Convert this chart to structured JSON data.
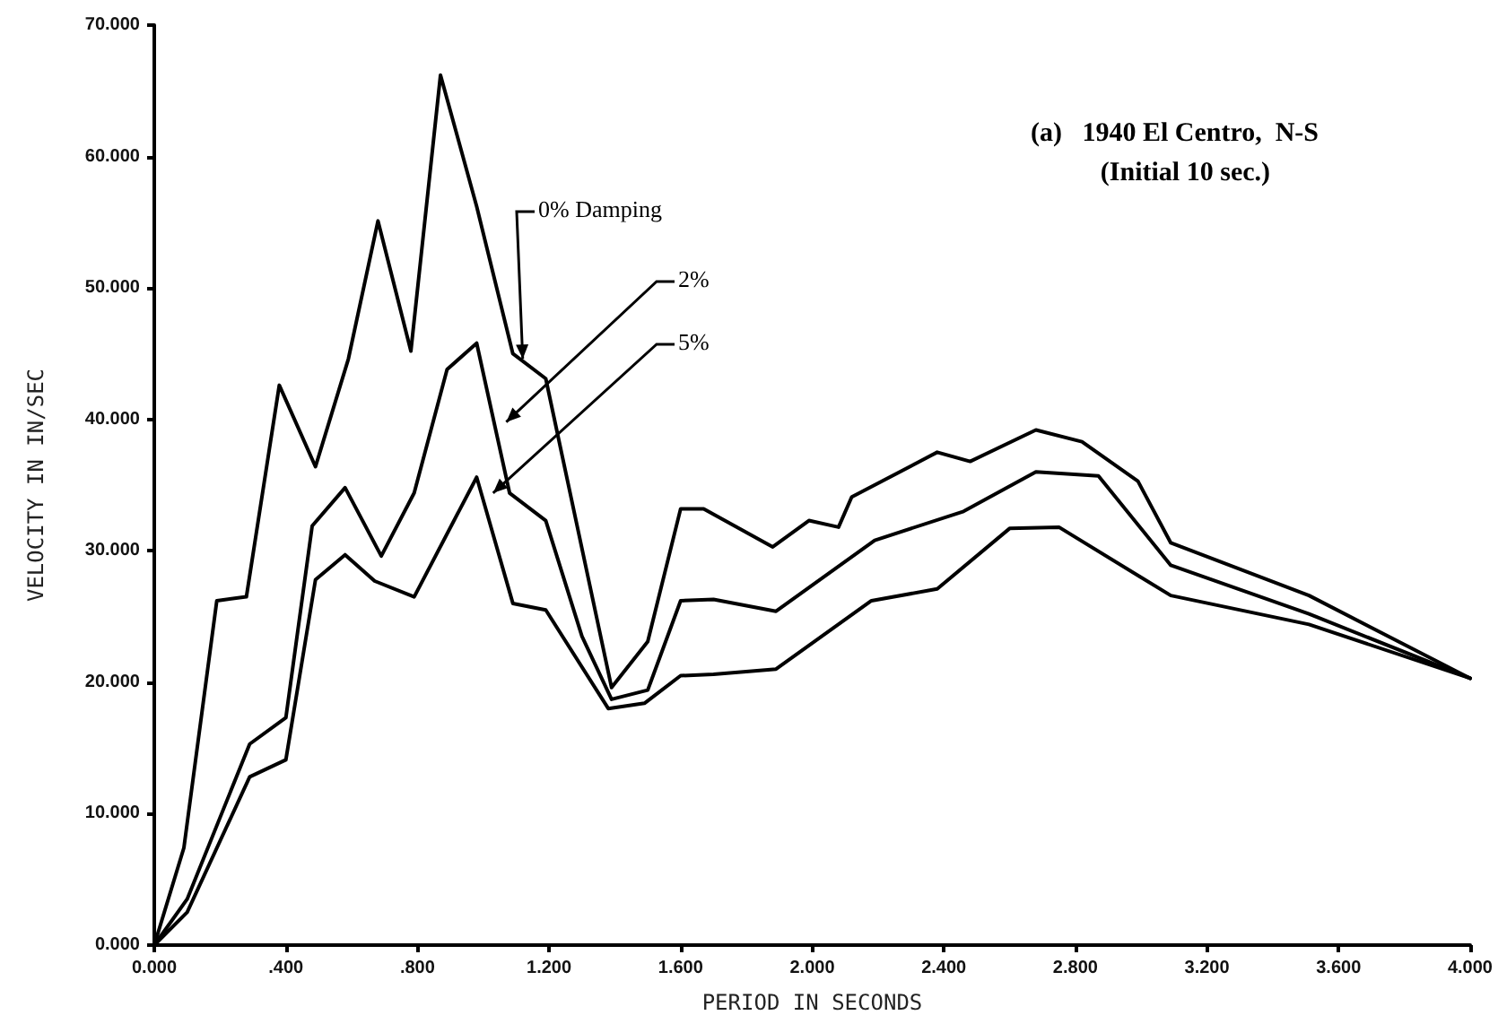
{
  "chart_data": {
    "type": "line",
    "title": "(a)   1940 El Centro,  N-S",
    "subtitle": "(Initial 10 sec.)",
    "xlabel": "PERIOD IN SECONDS",
    "ylabel": "VELOCITY IN IN/SEC",
    "xlim": [
      0,
      4
    ],
    "ylim": [
      0,
      70
    ],
    "xticks": [
      {
        "value": 0,
        "label": "0.000"
      },
      {
        "value": 0.4,
        "label": ".400"
      },
      {
        "value": 0.8,
        "label": ".800"
      },
      {
        "value": 1.2,
        "label": "1.200"
      },
      {
        "value": 1.6,
        "label": "1.600"
      },
      {
        "value": 2.0,
        "label": "2.000"
      },
      {
        "value": 2.4,
        "label": "2.400"
      },
      {
        "value": 2.8,
        "label": "2.800"
      },
      {
        "value": 3.2,
        "label": "3.200"
      },
      {
        "value": 3.6,
        "label": "3.600"
      },
      {
        "value": 4.0,
        "label": "4.000"
      }
    ],
    "yticks": [
      {
        "value": 0,
        "label": "0.000"
      },
      {
        "value": 10,
        "label": "10.000"
      },
      {
        "value": 20,
        "label": "20.000"
      },
      {
        "value": 30,
        "label": "30.000"
      },
      {
        "value": 40,
        "label": "40.000"
      },
      {
        "value": 50,
        "label": "50.000"
      },
      {
        "value": 60,
        "label": "60.000"
      },
      {
        "value": 70,
        "label": "70.000"
      }
    ],
    "grid": false,
    "legend": false,
    "marker": "none",
    "line_style": "solid",
    "series": [
      {
        "name": "0% Damping",
        "color": "#000000",
        "x": [
          0,
          0.09,
          0.19,
          0.28,
          0.38,
          0.49,
          0.59,
          0.68,
          0.78,
          0.87,
          0.98,
          1.09,
          1.19,
          1.39,
          1.5,
          1.6,
          1.67,
          1.88,
          1.99,
          2.08,
          2.12,
          2.38,
          2.48,
          2.68,
          2.82,
          2.99,
          3.09,
          3.51,
          4.0
        ],
        "values": [
          0,
          7.4,
          26.2,
          26.5,
          42.6,
          36.4,
          44.6,
          55.1,
          45.2,
          66.2,
          56.2,
          45,
          43.1,
          19.6,
          23.1,
          33.2,
          33.2,
          30.3,
          32.3,
          31.8,
          34.1,
          37.5,
          36.8,
          39.2,
          38.3,
          35.3,
          30.6,
          26.6,
          20.3
        ]
      },
      {
        "name": "2%",
        "color": "#000000",
        "x": [
          0,
          0.1,
          0.29,
          0.4,
          0.48,
          0.58,
          0.69,
          0.79,
          0.89,
          0.98,
          1.08,
          1.19,
          1.3,
          1.39,
          1.5,
          1.6,
          1.7,
          1.89,
          2.19,
          2.46,
          2.68,
          2.87,
          3.09,
          3.51,
          4.0
        ],
        "values": [
          0,
          3.5,
          15.3,
          17.3,
          31.9,
          34.8,
          29.6,
          34.4,
          43.8,
          45.8,
          34.4,
          32.3,
          23.5,
          18.7,
          19.4,
          26.2,
          26.3,
          25.4,
          30.8,
          33,
          36,
          35.7,
          28.9,
          25.2,
          20.3
        ]
      },
      {
        "name": "5%",
        "color": "#000000",
        "x": [
          0,
          0.1,
          0.29,
          0.4,
          0.49,
          0.58,
          0.67,
          0.79,
          0.98,
          1.09,
          1.19,
          1.38,
          1.49,
          1.6,
          1.7,
          1.89,
          2.18,
          2.38,
          2.6,
          2.75,
          3.09,
          3.51,
          4.0
        ],
        "values": [
          0,
          2.5,
          12.8,
          14.1,
          27.8,
          29.7,
          27.7,
          26.5,
          35.6,
          26,
          25.5,
          18,
          18.4,
          20.5,
          20.6,
          21,
          26.2,
          27.1,
          31.7,
          31.8,
          26.6,
          24.4,
          20.3
        ]
      }
    ]
  }
}
